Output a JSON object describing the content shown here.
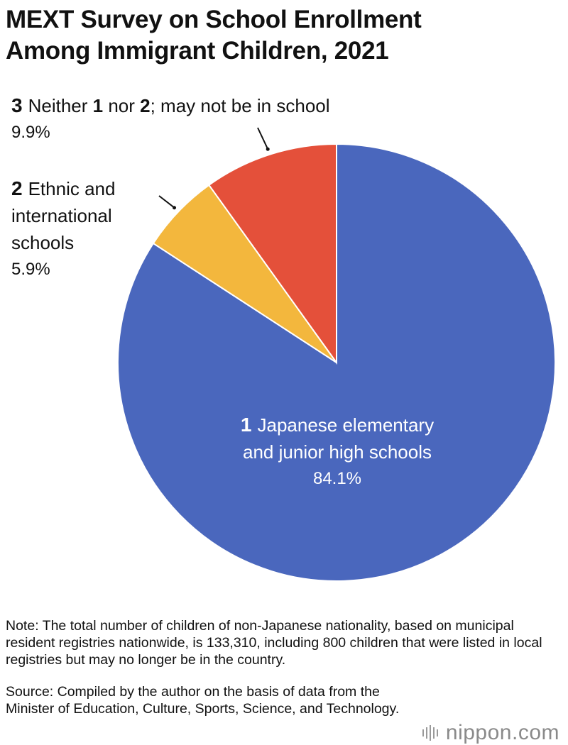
{
  "chart_data": {
    "type": "pie",
    "title": "MEXT Survey on School Enrollment Among Immigrant Children, 2021",
    "slices": [
      {
        "number": "1",
        "label": "Japanese elementary and junior high schools",
        "value": 84.1,
        "display": "84.1%",
        "color": "#4a67bd"
      },
      {
        "number": "2",
        "label": "Ethnic and international schools",
        "value": 5.9,
        "display": "5.9%",
        "color": "#f3b73d"
      },
      {
        "number": "3",
        "label": "Neither 1 nor 2; may not be in school",
        "value": 9.9,
        "display": "9.9%",
        "color": "#e4503a"
      }
    ],
    "start": "12 o'clock",
    "direction": "clockwise"
  },
  "title": {
    "line1": "MEXT Survey on School Enrollment",
    "line2": "Among Immigrant Children, 2021"
  },
  "labels": {
    "l1": {
      "num": "1",
      "text_a": "Japanese elementary",
      "text_b": "and junior high schools",
      "pct": "84.1%"
    },
    "l2": {
      "num": "2",
      "text_a": "Ethnic and",
      "text_b": "international",
      "text_c": "schools",
      "pct": "5.9%"
    },
    "l3": {
      "num": "3",
      "text_a": "Neither ",
      "num_a": "1",
      "text_b": " nor ",
      "num_b": "2",
      "text_c": "; may not be in school",
      "pct": "9.9%"
    }
  },
  "note": "Note: The total number of children of non-Japanese nationality, based on municipal resident registries nationwide, is 133,310, including 800 children that were listed in local registries but may no longer be in the country.",
  "source": "Source: Compiled by the author on the basis of data from the Minister of Education, Culture, Sports, Science, and Technology.",
  "logo": {
    "main": "nippon",
    "suffix": ".com"
  }
}
